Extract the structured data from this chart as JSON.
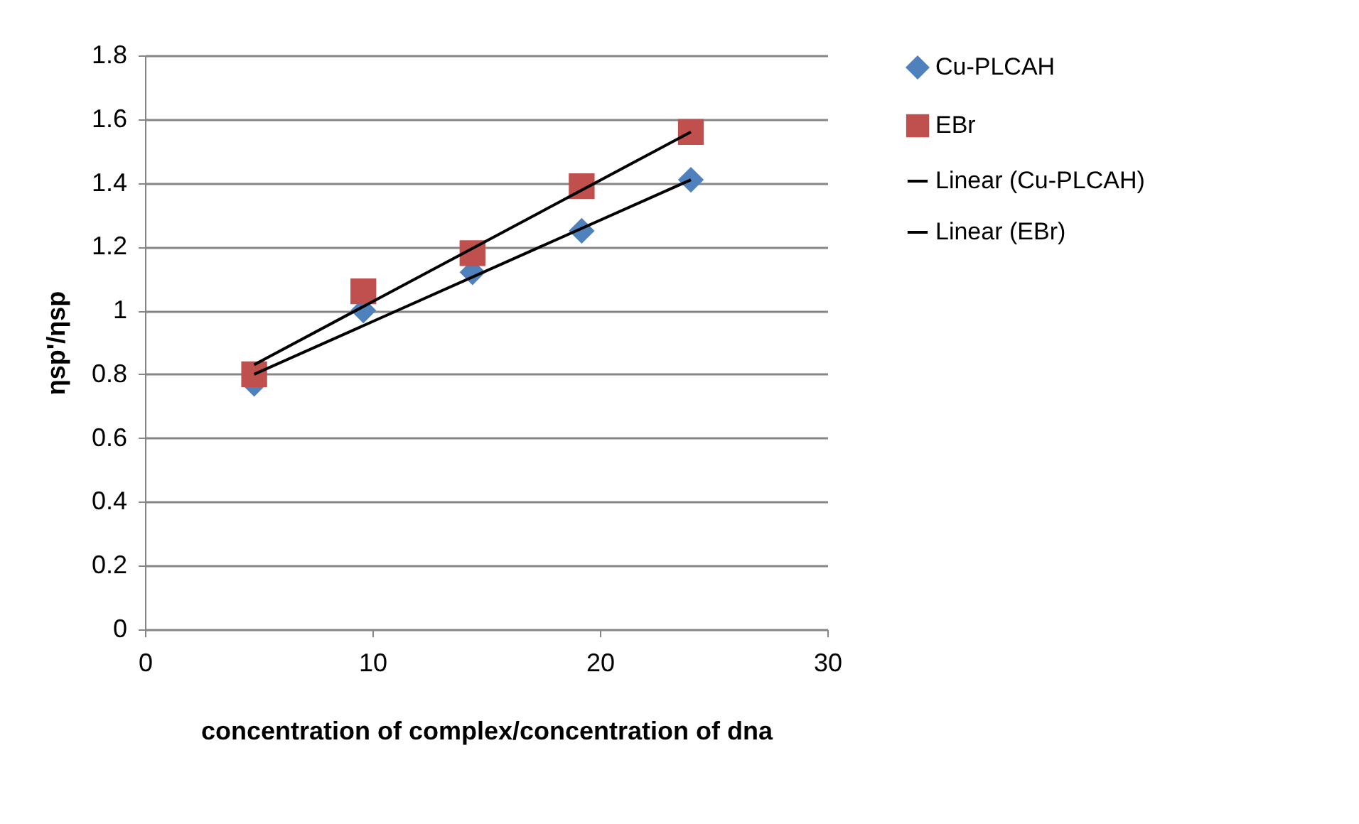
{
  "chart_data": {
    "type": "scatter",
    "xlabel": "concentration of complex/concentration of dna",
    "ylabel": "ηsp'/ηsp",
    "xlim": [
      0,
      30
    ],
    "xticks": [
      0,
      10,
      20,
      30
    ],
    "ylim": [
      0,
      1.8
    ],
    "yticks": [
      {
        "value": 0,
        "label": "0"
      },
      0.2,
      0.4,
      0.6,
      0.8,
      {
        "value": 1,
        "label": "1"
      },
      1.2,
      1.4,
      1.6,
      1.8
    ],
    "grid": "y",
    "legend": "right",
    "series": [
      {
        "name": "Cu-PLCAH",
        "type": "scatter",
        "marker": "diamond",
        "color": "#4f81bd",
        "x": [
          4.8,
          9.6,
          14.4,
          19.2,
          24
        ],
        "values": [
          0.77,
          1.0,
          1.12,
          1.25,
          1.41
        ]
      },
      {
        "name": "EBr",
        "type": "scatter",
        "marker": "square",
        "color": "#c0504d",
        "x": [
          4.8,
          9.6,
          14.4,
          19.2,
          24
        ],
        "values": [
          0.8,
          1.06,
          1.18,
          1.39,
          1.56
        ]
      },
      {
        "name": "Linear (Cu-PLCAH)",
        "type": "line",
        "marker": "none",
        "color": "#000000",
        "x": [
          4.8,
          24
        ],
        "values": [
          0.8,
          1.41
        ]
      },
      {
        "name": "Linear (EBr)",
        "type": "line",
        "marker": "none",
        "color": "#000000",
        "x": [
          4.8,
          24
        ],
        "values": [
          0.83,
          1.56
        ]
      }
    ]
  }
}
